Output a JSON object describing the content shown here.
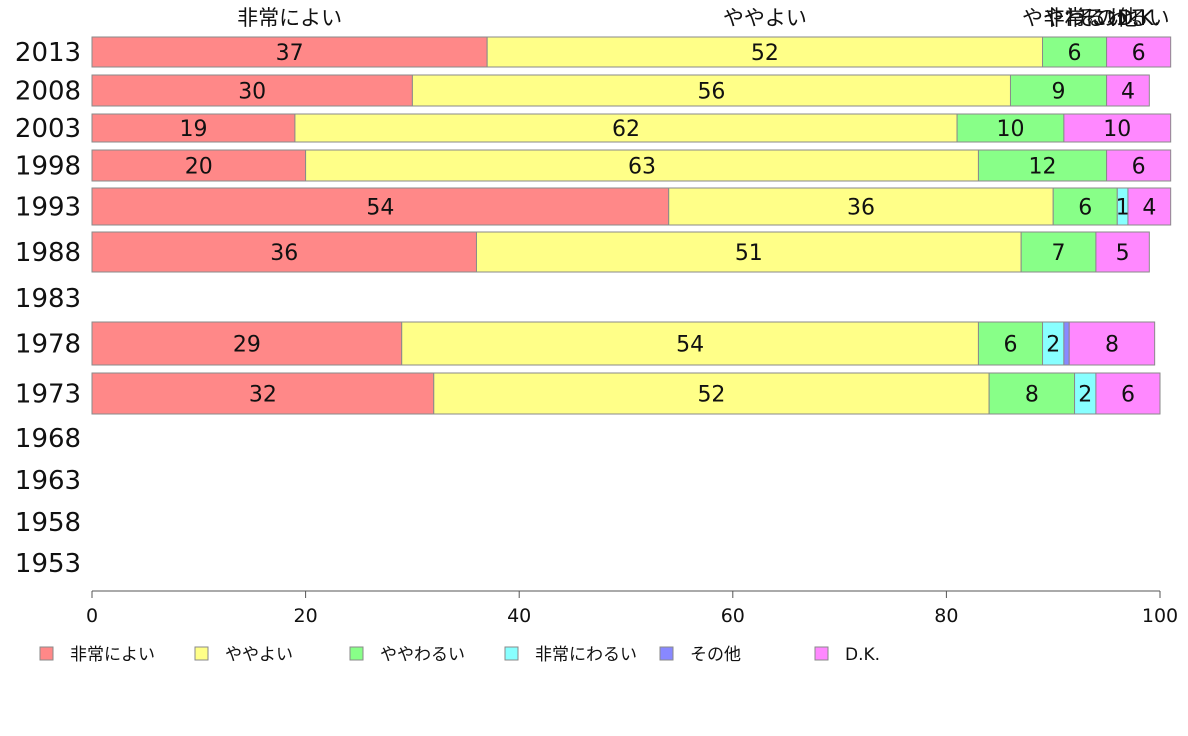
{
  "chart_data": {
    "type": "bar",
    "orientation": "horizontal",
    "stacked": true,
    "title": "",
    "xlabel": "",
    "ylabel": "",
    "xlim": [
      0,
      100
    ],
    "xticks": [
      0,
      20,
      40,
      60,
      80,
      100
    ],
    "grid": false,
    "legend_position": "bottom",
    "categories": [
      "2013",
      "2008",
      "2003",
      "1998",
      "1993",
      "1988",
      "1983",
      "1978",
      "1973",
      "1968",
      "1963",
      "1958",
      "1953"
    ],
    "series": [
      {
        "name": "非常によい",
        "color": "#ff8888",
        "values": [
          37,
          30,
          19,
          20,
          54,
          36,
          null,
          29,
          32,
          null,
          null,
          null,
          null
        ]
      },
      {
        "name": "ややよい",
        "color": "#ffff88",
        "values": [
          52,
          56,
          62,
          63,
          36,
          51,
          null,
          54,
          52,
          null,
          null,
          null,
          null
        ]
      },
      {
        "name": "ややわるい",
        "color": "#88ff88",
        "values": [
          6,
          9,
          10,
          12,
          6,
          7,
          null,
          6,
          8,
          null,
          null,
          null,
          null
        ]
      },
      {
        "name": "非常にわるい",
        "color": "#88ffff",
        "values": [
          0,
          0,
          0,
          0,
          1,
          0,
          null,
          2,
          2,
          null,
          null,
          null,
          null
        ]
      },
      {
        "name": "その他",
        "color": "#8888ff",
        "values": [
          0,
          0,
          0,
          0,
          0,
          0,
          null,
          0.5,
          0,
          null,
          null,
          null,
          null
        ]
      },
      {
        "name": "D.K.",
        "color": "#ff88ff",
        "values": [
          6,
          4,
          10,
          6,
          4,
          5,
          null,
          8,
          6,
          null,
          null,
          null,
          null
        ]
      }
    ],
    "top_labels": [
      "非常によい",
      "ややよい",
      "ややわるい",
      "非常にわるい",
      "その他",
      "D.K."
    ]
  }
}
